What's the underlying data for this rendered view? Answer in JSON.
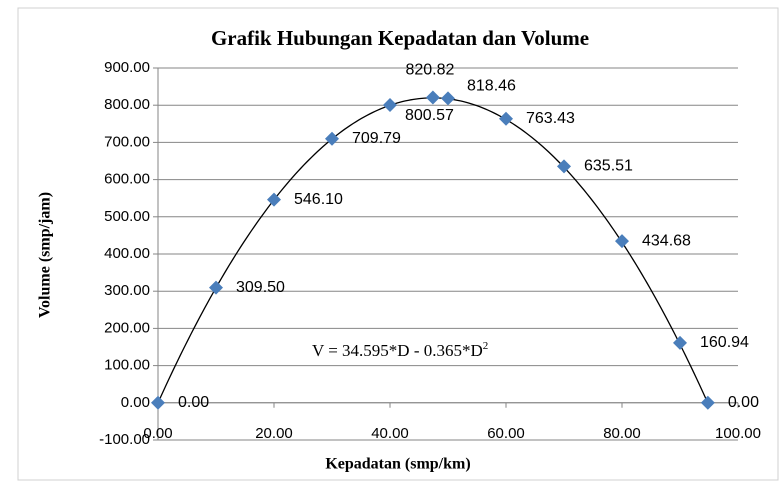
{
  "chart_data": {
    "type": "scatter",
    "title": "Grafik Hubungan Kepadatan dan Volume",
    "x_label": "Kepadatan (smp/km)",
    "y_label": "Volume (smp/jam)",
    "x": [
      0,
      10,
      20,
      30,
      40,
      47.4,
      50,
      60,
      70,
      80,
      90,
      94.8
    ],
    "series": [
      {
        "color": "#4a7ebb",
        "values": [
          0,
          309.5,
          546.1,
          709.79,
          800.57,
          820.82,
          818.46,
          763.43,
          635.51,
          434.68,
          160.94,
          0
        ],
        "value_labels": [
          "0.00",
          "309.50",
          "546.10",
          "709.79",
          "800.57",
          "820.82",
          "818.46",
          "763.43",
          "635.51",
          "434.68",
          "160.94",
          "0.00"
        ]
      }
    ],
    "trendline": {
      "label": "V = 34.595*D - 0.365*D",
      "label_sup": "2",
      "coefficients": [
        34.595,
        -0.365
      ],
      "color": "#000000"
    },
    "xlim": [
      0,
      100
    ],
    "xticks": [
      {
        "value": 0,
        "label": "0.00"
      },
      {
        "value": 20,
        "label": "20.00"
      },
      {
        "value": 40,
        "label": "40.00"
      },
      {
        "value": 60,
        "label": "60.00"
      },
      {
        "value": 80,
        "label": "80.00"
      },
      {
        "value": 100,
        "label": "100.00"
      }
    ],
    "ylim": [
      -100,
      900
    ],
    "yticks": [
      {
        "value": -100,
        "label": "-100.00"
      },
      {
        "value": 0,
        "label": "0.00"
      },
      {
        "value": 100,
        "label": "100.00"
      },
      {
        "value": 200,
        "label": "200.00"
      },
      {
        "value": 300,
        "label": "300.00"
      },
      {
        "value": 400,
        "label": "400.00"
      },
      {
        "value": 500,
        "label": "500.00"
      },
      {
        "value": 600,
        "label": "600.00"
      },
      {
        "value": 700,
        "label": "700.00"
      },
      {
        "value": 800,
        "label": "800.00"
      },
      {
        "value": 900,
        "label": "900.00"
      }
    ],
    "grid": true
  }
}
